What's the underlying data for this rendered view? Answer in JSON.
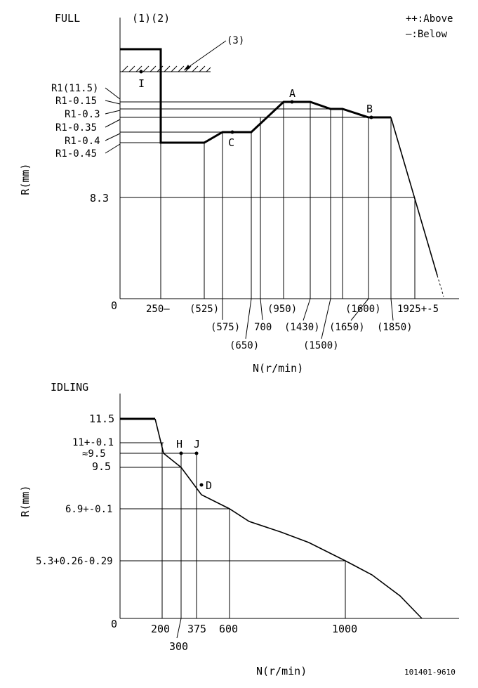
{
  "full": {
    "title": "FULL",
    "header": "(1)(2)",
    "legend_above": "++:Above",
    "legend_below": "—:Below",
    "callout_3": "(3)",
    "point_I": "I",
    "point_A": "A",
    "point_B": "B",
    "point_C": "C",
    "y_axis_label": "R(mm)",
    "x_axis_label": "N(r/min)",
    "origin": "0",
    "y_labels": [
      "R1(11.5)",
      "R1-0.15",
      "R1-0.3",
      "R1-0.35",
      "R1-0.4",
      "R1-0.45",
      "8.3"
    ],
    "x_labels": [
      "250—",
      "(525)",
      "(575)",
      "(650)",
      "700",
      "(950)",
      "(1430)",
      "(1500)",
      "(1600)",
      "(1650)",
      "(1850)",
      "1925+-5"
    ]
  },
  "idling": {
    "title": "IDLING",
    "y_axis_label": "R(mm)",
    "x_axis_label": "N(r/min)",
    "origin": "0",
    "point_H": "H",
    "point_J": "J",
    "point_D": "D",
    "y_labels": [
      "11.5",
      "11+-0.1",
      "≈9.5",
      "9.5",
      "6.9+-0.1",
      "5.3+0.26-0.29"
    ],
    "x_labels": [
      "200",
      "300",
      "375",
      "600",
      "1000"
    ]
  },
  "drawing_number": "101401-9610"
}
